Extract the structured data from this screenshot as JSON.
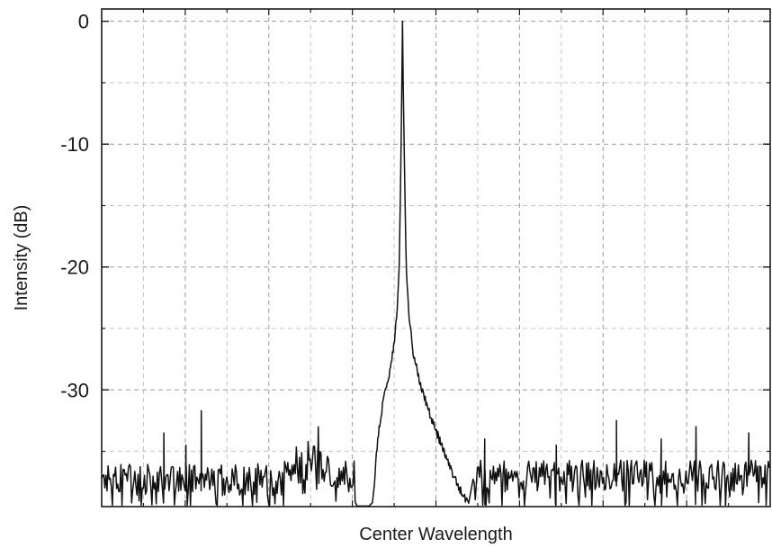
{
  "chart_data": {
    "type": "line",
    "title": "",
    "xlabel": "Center Wavelength",
    "ylabel": "Intensity (dB)",
    "x_ticks_labeled": false,
    "xlim": [
      0,
      100
    ],
    "ylim": [
      -39.5,
      1.0
    ],
    "yticks": [
      0,
      -10,
      -20,
      -30
    ],
    "ytick_labels": [
      "0",
      "-10",
      "-20",
      "-30"
    ],
    "grid": true,
    "grid_style": "dashed",
    "line_color": "#111111",
    "series": [
      {
        "description": "Optical spectrum with a single narrow peak reaching 0 dB at x≈45; noise floor around -37 dB with spurious spikes",
        "peak": {
          "x": 45.0,
          "y": 0
        },
        "profile": [
          [
            40.5,
            -39.5
          ],
          [
            41.3,
            -34.0
          ],
          [
            42.2,
            -30.5
          ],
          [
            43.0,
            -29.0
          ],
          [
            43.7,
            -26.5
          ],
          [
            44.2,
            -23.5
          ],
          [
            44.5,
            -20.0
          ],
          [
            44.75,
            -12.0
          ],
          [
            44.9,
            -5.0
          ],
          [
            45.0,
            0
          ],
          [
            45.1,
            -5.0
          ],
          [
            45.3,
            -12.0
          ],
          [
            45.55,
            -20.0
          ],
          [
            45.9,
            -23.5
          ],
          [
            46.6,
            -27.0
          ],
          [
            47.7,
            -29.5
          ],
          [
            49.4,
            -32.5
          ],
          [
            51.2,
            -35.0
          ],
          [
            53.0,
            -37.5
          ],
          [
            55.0,
            -39.5
          ]
        ],
        "noise_floor_left": {
          "x_range": [
            0,
            34
          ],
          "level": -37.3
        },
        "noise_bump": {
          "x_range": [
            27,
            36
          ],
          "level": -35.5
        },
        "noise_floor_right": {
          "x_range": [
            55.5,
            100
          ],
          "level": -37.0
        },
        "spikes": [
          {
            "x": 9.3,
            "y": -33.5
          },
          {
            "x": 12.6,
            "y": -34.5
          },
          {
            "x": 14.9,
            "y": -31.7
          },
          {
            "x": 32.4,
            "y": -33.0
          },
          {
            "x": 57.3,
            "y": -34.0
          },
          {
            "x": 68.0,
            "y": -34.5
          },
          {
            "x": 77.0,
            "y": -32.5
          },
          {
            "x": 83.7,
            "y": -34.0
          },
          {
            "x": 88.9,
            "y": -33.0
          },
          {
            "x": 96.8,
            "y": -33.5
          }
        ]
      }
    ]
  }
}
